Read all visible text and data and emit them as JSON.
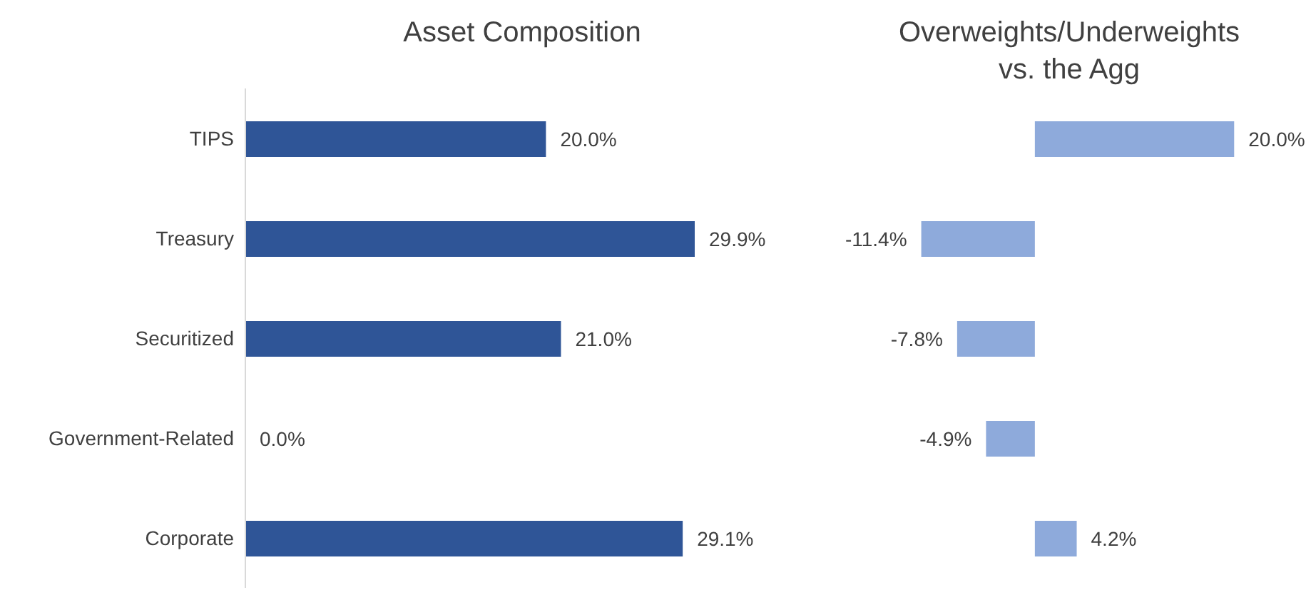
{
  "chart_data": [
    {
      "type": "bar",
      "orientation": "horizontal",
      "title": "Asset Composition",
      "categories": [
        "TIPS",
        "Treasury",
        "Securitized",
        "Government-Related",
        "Corporate"
      ],
      "values": [
        20.0,
        29.9,
        21.0,
        0.0,
        29.1
      ],
      "value_labels": [
        "20.0%",
        "29.9%",
        "21.0%",
        "0.0%",
        "29.1%"
      ],
      "color": "#2f5597",
      "grid": false,
      "legend": false
    },
    {
      "type": "bar",
      "orientation": "horizontal",
      "title": "Overweights/Underweights vs. the Agg",
      "categories": [
        null,
        null,
        null,
        null,
        null
      ],
      "values": [
        20.0,
        -11.4,
        -7.8,
        -4.9,
        4.2
      ],
      "value_labels": [
        "20.0%",
        "-11.4%",
        "-7.8%",
        "-4.9%",
        "4.2%"
      ],
      "color": "#8eaadb",
      "grid": false,
      "legend": false,
      "tick_labels": false
    }
  ]
}
